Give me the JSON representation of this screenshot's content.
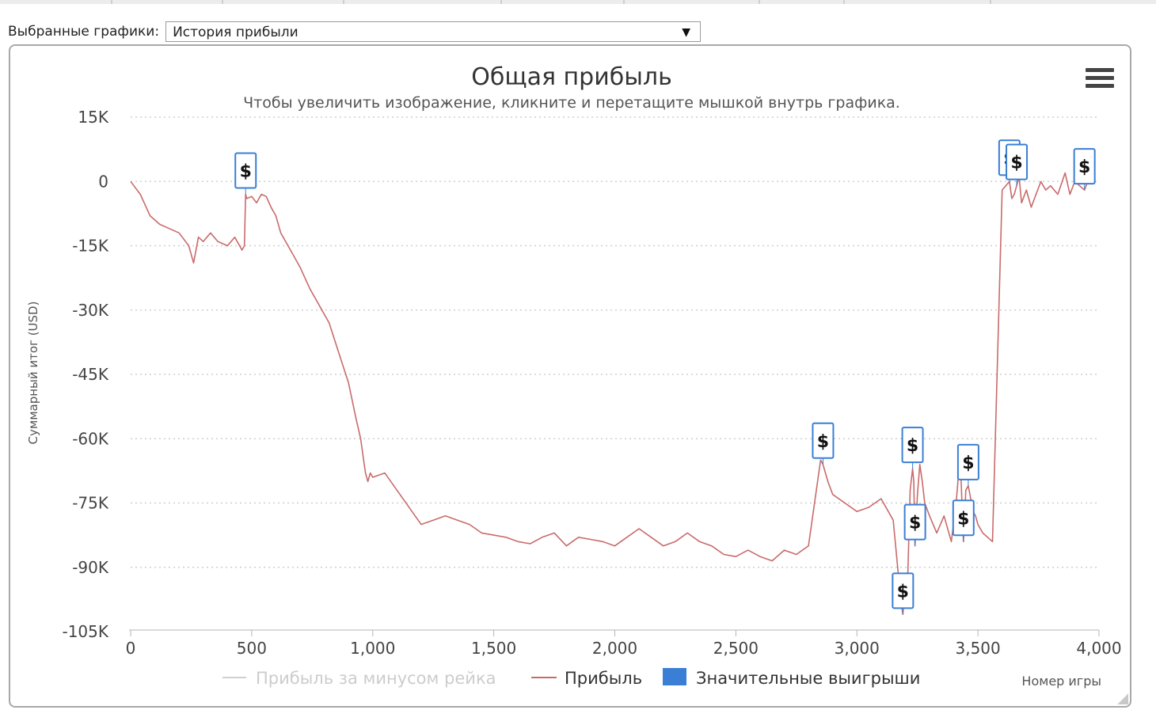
{
  "selector": {
    "label": "Выбранные графики:",
    "value": "История прибыли",
    "arrow": "▼"
  },
  "colors": {
    "profit_line": "#c96b6b",
    "significant_wins": "#3a7fd5",
    "rake_line": "#d0d0d0",
    "grid": "#cfcfcf"
  },
  "icons": {
    "menu": "hamburger-menu-icon",
    "win_marker": "dollar-flag-icon"
  },
  "chart_data": {
    "type": "line",
    "title": "Общая прибыль",
    "subtitle": "Чтобы увеличить изображение, кликните и перетащите мышкой внутрь графика.",
    "xlabel": "Номер игры",
    "ylabel": "Суммарный итог (USD)",
    "xlim": [
      0,
      4000
    ],
    "ylim": [
      -105000,
      15000
    ],
    "x_ticks": [
      0,
      500,
      1000,
      1500,
      2000,
      2500,
      3000,
      3500,
      4000
    ],
    "x_tick_labels": [
      "0",
      "500",
      "1,000",
      "1,500",
      "2,000",
      "2,500",
      "3,000",
      "3,500",
      "4,000"
    ],
    "y_ticks": [
      15000,
      0,
      -15000,
      -30000,
      -45000,
      -60000,
      -75000,
      -90000,
      -105000
    ],
    "y_tick_labels": [
      "15K",
      "0",
      "-15K",
      "-30K",
      "-45K",
      "-60K",
      "-75K",
      "-90K",
      "-105K"
    ],
    "grid": true,
    "legend_position": "bottom",
    "legend": [
      {
        "name": "Прибыль за минусом рейка",
        "type": "line",
        "enabled": false
      },
      {
        "name": "Прибыль",
        "type": "line",
        "enabled": true
      },
      {
        "name": "Значительные выигрыши",
        "type": "flag",
        "enabled": true
      }
    ],
    "series": [
      {
        "name": "Прибыль",
        "x": [
          0,
          40,
          80,
          120,
          160,
          200,
          240,
          260,
          280,
          300,
          330,
          360,
          400,
          430,
          460,
          470,
          475,
          480,
          500,
          520,
          540,
          560,
          580,
          600,
          620,
          660,
          700,
          740,
          780,
          820,
          860,
          900,
          930,
          950,
          960,
          970,
          980,
          990,
          1000,
          1050,
          1100,
          1150,
          1200,
          1250,
          1300,
          1350,
          1400,
          1450,
          1500,
          1550,
          1600,
          1650,
          1700,
          1750,
          1800,
          1850,
          1900,
          1950,
          2000,
          2050,
          2100,
          2150,
          2200,
          2250,
          2300,
          2350,
          2400,
          2450,
          2500,
          2550,
          2600,
          2650,
          2700,
          2750,
          2800,
          2850,
          2860,
          2870,
          2880,
          2900,
          2950,
          3000,
          3050,
          3100,
          3150,
          3180,
          3190,
          3200,
          3210,
          3220,
          3230,
          3235,
          3240,
          3250,
          3260,
          3270,
          3280,
          3300,
          3330,
          3360,
          3390,
          3410,
          3420,
          3430,
          3440,
          3450,
          3460,
          3470,
          3480,
          3490,
          3500,
          3520,
          3560,
          3600,
          3630,
          3640,
          3650,
          3660,
          3670,
          3680,
          3700,
          3720,
          3740,
          3760,
          3780,
          3800,
          3830,
          3860,
          3880,
          3900,
          3920,
          3940,
          3960,
          3980
        ],
        "values": [
          0,
          -3000,
          -8000,
          -10000,
          -11000,
          -12000,
          -15000,
          -19000,
          -13000,
          -14000,
          -12000,
          -14000,
          -15000,
          -13000,
          -16000,
          -15000,
          -3000,
          -4000,
          -3500,
          -5000,
          -3000,
          -3500,
          -6000,
          -8000,
          -12000,
          -16000,
          -20000,
          -25000,
          -29000,
          -33000,
          -40000,
          -47000,
          -55000,
          -60000,
          -64000,
          -68000,
          -70000,
          -68000,
          -69000,
          -68000,
          -72000,
          -76000,
          -80000,
          -79000,
          -78000,
          -79000,
          -80000,
          -82000,
          -82500,
          -83000,
          -84000,
          -84500,
          -83000,
          -82000,
          -85000,
          -83000,
          -83500,
          -84000,
          -85000,
          -83000,
          -81000,
          -83000,
          -85000,
          -84000,
          -82000,
          -84000,
          -85000,
          -87000,
          -87500,
          -86000,
          -87500,
          -88500,
          -86000,
          -87000,
          -85000,
          -65000,
          -66000,
          -68000,
          -70000,
          -73000,
          -75000,
          -77000,
          -76000,
          -74000,
          -79000,
          -97000,
          -101000,
          -93000,
          -92000,
          -72000,
          -67000,
          -70000,
          -85000,
          -73000,
          -66000,
          -70000,
          -75000,
          -78000,
          -82000,
          -78000,
          -84000,
          -75000,
          -68000,
          -69000,
          -84000,
          -72000,
          -71000,
          -74000,
          -77000,
          -78000,
          -80000,
          -82000,
          -84000,
          -2000,
          0,
          -4000,
          -3000,
          -1000,
          1000,
          -5000,
          -2000,
          -6000,
          -3000,
          0,
          -2000,
          -1000,
          -3000,
          2000,
          -3000,
          0,
          -1000,
          -2000,
          1000,
          0
        ]
      }
    ],
    "flags": [
      {
        "x": 475,
        "label": "$"
      },
      {
        "x": 2860,
        "label": "$"
      },
      {
        "x": 3190,
        "label": "$"
      },
      {
        "x": 3230,
        "label": "$"
      },
      {
        "x": 3240,
        "label": "$"
      },
      {
        "x": 3440,
        "label": "$"
      },
      {
        "x": 3460,
        "label": "$"
      },
      {
        "x": 3630,
        "label": "$"
      },
      {
        "x": 3660,
        "label": "$"
      },
      {
        "x": 3940,
        "label": "$"
      }
    ]
  }
}
